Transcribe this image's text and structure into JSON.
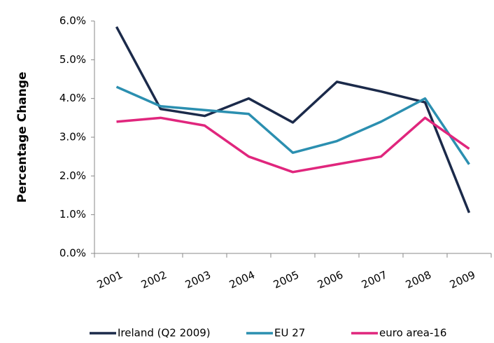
{
  "chart_data": {
    "type": "line",
    "y_label": "Percentage Change",
    "categories": [
      "2001",
      "2002",
      "2003",
      "2004",
      "2005",
      "2006",
      "2007",
      "2008",
      "2009"
    ],
    "series": [
      {
        "name": "Ireland (Q2 2009)",
        "color": "#1b2a4a",
        "values": [
          5.85,
          3.73,
          3.55,
          4.0,
          3.38,
          4.43,
          4.18,
          3.9,
          1.05
        ]
      },
      {
        "name": "EU 27",
        "color": "#2b8fb0",
        "values": [
          4.3,
          3.8,
          3.7,
          3.6,
          2.6,
          2.9,
          3.4,
          4.0,
          2.3
        ]
      },
      {
        "name": "euro area-16",
        "color": "#e0267d",
        "values": [
          3.4,
          3.5,
          3.3,
          2.5,
          2.1,
          2.3,
          2.5,
          3.5,
          2.7
        ]
      }
    ],
    "ylim": [
      0,
      6
    ],
    "yticks": [
      {
        "value": 0,
        "label": "0.0%"
      },
      {
        "value": 1,
        "label": "1.0%"
      },
      {
        "value": 2,
        "label": "2.0%"
      },
      {
        "value": 3,
        "label": "3.0%"
      },
      {
        "value": 4,
        "label": "4.0%"
      },
      {
        "value": 5,
        "label": "5.0%"
      },
      {
        "value": 6,
        "label": "6.0%"
      }
    ],
    "grid": false,
    "legend": "bottom"
  }
}
